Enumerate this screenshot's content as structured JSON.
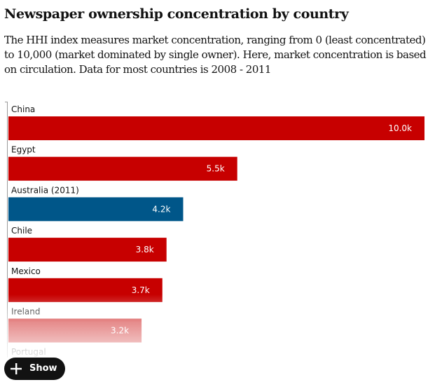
{
  "header": {
    "title": "Newspaper ownership concentration by country",
    "standfirst": "The HHI index measures market concentration, ranging from 0 (least concentrated) to 10,000 (market dominated by single owner). Here, market concentration is based on circulation. Data for most countries is 2008 - 2011"
  },
  "chart_data": {
    "type": "bar",
    "orientation": "horizontal",
    "categories": [
      "China",
      "Egypt",
      "Australia (2011)",
      "Chile",
      "Mexico",
      "Ireland",
      "Portugal"
    ],
    "values": [
      10000,
      5500,
      4200,
      3800,
      3700,
      3200,
      null
    ],
    "data_labels": [
      "10.0k",
      "5.5k",
      "4.2k",
      "3.8k",
      "3.7k",
      "3.2k",
      ""
    ],
    "xlim": [
      0,
      10000
    ],
    "grid": false,
    "legend": "none",
    "colors": {
      "default": "#c70000",
      "highlight": "#005689",
      "highlight_category": "Australia (2011)"
    }
  },
  "controls": {
    "show_label": "Show",
    "show_icon": "plus-icon"
  }
}
